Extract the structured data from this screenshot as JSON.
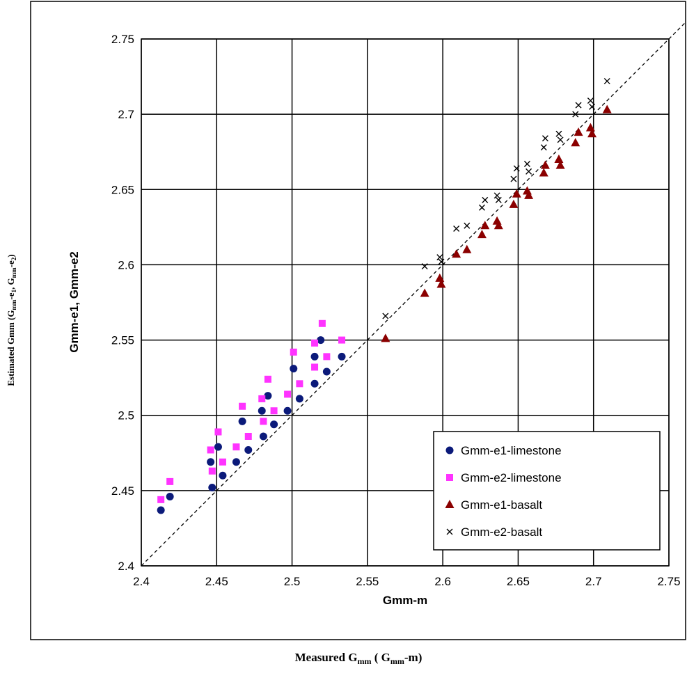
{
  "chart_data": {
    "type": "scatter",
    "xlabel": "Gmm-m",
    "ylabel": "Gmm-e1, Gmm-e2",
    "outer_xlabel": {
      "main": "Measured G",
      "sub": "mm",
      "mid": " ( G",
      "sub2": "mm",
      "tail": "-m)"
    },
    "outer_ylabel": {
      "p1": "Estimated Gmm (G",
      "s1": "mm",
      "p2": "-e",
      "s2": "1",
      "p3": ", G",
      "s3": "mm",
      "p4": "-e",
      "s4": "2",
      "p5": ")"
    },
    "xlim": [
      2.4,
      2.75
    ],
    "ylim": [
      2.4,
      2.75
    ],
    "xticks": [
      2.4,
      2.45,
      2.5,
      2.55,
      2.6,
      2.65,
      2.7,
      2.75
    ],
    "yticks": [
      2.4,
      2.45,
      2.5,
      2.55,
      2.6,
      2.65,
      2.7,
      2.75
    ],
    "tick_labels": [
      "2.4",
      "2.45",
      "2.5",
      "2.55",
      "2.6",
      "2.65",
      "2.7",
      "2.75"
    ],
    "grid": true,
    "equality_line": true,
    "legend_position": "bottom-right",
    "series": [
      {
        "name": "Gmm-e1-limestone",
        "marker": "circle",
        "color": "#0b1a7a",
        "points": [
          [
            2.413,
            2.437
          ],
          [
            2.419,
            2.446
          ],
          [
            2.446,
            2.469
          ],
          [
            2.447,
            2.452
          ],
          [
            2.451,
            2.479
          ],
          [
            2.454,
            2.46
          ],
          [
            2.463,
            2.469
          ],
          [
            2.467,
            2.496
          ],
          [
            2.471,
            2.477
          ],
          [
            2.48,
            2.503
          ],
          [
            2.481,
            2.486
          ],
          [
            2.484,
            2.513
          ],
          [
            2.488,
            2.494
          ],
          [
            2.497,
            2.503
          ],
          [
            2.501,
            2.531
          ],
          [
            2.505,
            2.511
          ],
          [
            2.515,
            2.539
          ],
          [
            2.515,
            2.521
          ],
          [
            2.519,
            2.55
          ],
          [
            2.523,
            2.529
          ],
          [
            2.533,
            2.539
          ]
        ]
      },
      {
        "name": "Gmm-e2-limestone",
        "marker": "square",
        "color": "#ff33ff",
        "points": [
          [
            2.413,
            2.444
          ],
          [
            2.419,
            2.456
          ],
          [
            2.446,
            2.477
          ],
          [
            2.447,
            2.463
          ],
          [
            2.451,
            2.489
          ],
          [
            2.454,
            2.469
          ],
          [
            2.463,
            2.479
          ],
          [
            2.467,
            2.506
          ],
          [
            2.471,
            2.486
          ],
          [
            2.48,
            2.511
          ],
          [
            2.481,
            2.496
          ],
          [
            2.484,
            2.524
          ],
          [
            2.488,
            2.503
          ],
          [
            2.497,
            2.514
          ],
          [
            2.501,
            2.542
          ],
          [
            2.505,
            2.521
          ],
          [
            2.515,
            2.548
          ],
          [
            2.515,
            2.532
          ],
          [
            2.52,
            2.561
          ],
          [
            2.523,
            2.539
          ],
          [
            2.533,
            2.55
          ]
        ]
      },
      {
        "name": "Gmm-e1-basalt",
        "marker": "triangle",
        "color": "#8b0000",
        "points": [
          [
            2.562,
            2.551
          ],
          [
            2.588,
            2.581
          ],
          [
            2.598,
            2.591
          ],
          [
            2.599,
            2.587
          ],
          [
            2.609,
            2.607
          ],
          [
            2.616,
            2.61
          ],
          [
            2.626,
            2.62
          ],
          [
            2.628,
            2.626
          ],
          [
            2.636,
            2.629
          ],
          [
            2.637,
            2.626
          ],
          [
            2.647,
            2.64
          ],
          [
            2.649,
            2.647
          ],
          [
            2.656,
            2.649
          ],
          [
            2.657,
            2.646
          ],
          [
            2.667,
            2.661
          ],
          [
            2.668,
            2.666
          ],
          [
            2.677,
            2.67
          ],
          [
            2.678,
            2.666
          ],
          [
            2.688,
            2.681
          ],
          [
            2.69,
            2.688
          ],
          [
            2.698,
            2.691
          ],
          [
            2.699,
            2.687
          ],
          [
            2.709,
            2.703
          ]
        ]
      },
      {
        "name": "Gmm-e2-basalt",
        "marker": "x",
        "color": "#000000",
        "points": [
          [
            2.562,
            2.566
          ],
          [
            2.588,
            2.599
          ],
          [
            2.598,
            2.605
          ],
          [
            2.599,
            2.602
          ],
          [
            2.609,
            2.624
          ],
          [
            2.616,
            2.626
          ],
          [
            2.626,
            2.638
          ],
          [
            2.628,
            2.643
          ],
          [
            2.636,
            2.646
          ],
          [
            2.637,
            2.643
          ],
          [
            2.647,
            2.657
          ],
          [
            2.649,
            2.664
          ],
          [
            2.656,
            2.667
          ],
          [
            2.657,
            2.662
          ],
          [
            2.667,
            2.678
          ],
          [
            2.668,
            2.684
          ],
          [
            2.677,
            2.687
          ],
          [
            2.678,
            2.683
          ],
          [
            2.688,
            2.7
          ],
          [
            2.69,
            2.706
          ],
          [
            2.698,
            2.709
          ],
          [
            2.699,
            2.705
          ],
          [
            2.709,
            2.722
          ]
        ]
      }
    ]
  }
}
